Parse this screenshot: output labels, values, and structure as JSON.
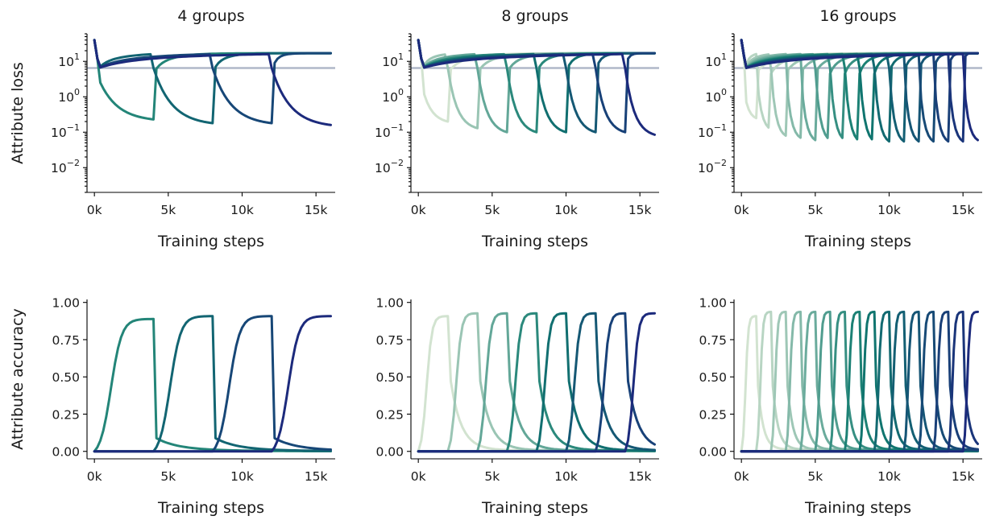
{
  "figure": {
    "row_ylabels": [
      "Attribute loss",
      "Attribute accuracy"
    ],
    "xlabel": "Training steps",
    "x_ticks": [
      0,
      5000,
      10000,
      15000
    ],
    "x_tick_labels": [
      "0k",
      "5k",
      "10k",
      "15k"
    ],
    "loss_tick_values": [
      10,
      1,
      0.1,
      0.01
    ],
    "loss_tick_labels": [
      {
        "base": "10",
        "exp": "1"
      },
      {
        "base": "10",
        "exp": "0"
      },
      {
        "base": "10",
        "exp": "−1"
      },
      {
        "base": "10",
        "exp": "−2"
      }
    ],
    "acc_tick_values": [
      0,
      0.25,
      0.5,
      0.75,
      1.0
    ],
    "acc_tick_labels": [
      "0.00",
      "0.25",
      "0.50",
      "0.75",
      "1.00"
    ],
    "reference_line_color": "#b0b8c8",
    "palette_light": "#d2e3d0",
    "palette_mid": "#0f7a6e",
    "palette_dark": "#1c2a7c"
  },
  "chart_data": [
    {
      "type": "line",
      "title": "4 groups",
      "groups": 4,
      "metric": "loss",
      "xlabel": "Training steps",
      "ylabel": "Attribute loss",
      "xlim": [
        -500,
        16300
      ],
      "ylim": [
        0.002,
        60
      ],
      "yscale": "log",
      "reference_line": 6.5,
      "minimum_losses": [
        0.23,
        0.18,
        0.18,
        0.16
      ],
      "initial_loss": 40,
      "plateau_loss": [
        6.5,
        17
      ],
      "final_accuracy": 0.95
    },
    {
      "type": "line",
      "title": "8 groups",
      "groups": 8,
      "metric": "loss",
      "xlabel": "Training steps",
      "ylabel": "",
      "xlim": [
        -500,
        16300
      ],
      "ylim": [
        0.002,
        60
      ],
      "yscale": "log",
      "reference_line": 6.5,
      "minimum_losses": [
        0.2,
        0.13,
        0.1,
        0.1,
        0.1,
        0.1,
        0.1,
        0.085
      ],
      "initial_loss": 40,
      "plateau_loss": [
        6.5,
        17
      ],
      "final_accuracy": 0.97
    },
    {
      "type": "line",
      "title": "16 groups",
      "groups": 16,
      "metric": "loss",
      "xlabel": "Training steps",
      "ylabel": "",
      "xlim": [
        -500,
        16300
      ],
      "ylim": [
        0.002,
        60
      ],
      "yscale": "log",
      "reference_line": 6.5,
      "minimum_losses": [
        0.25,
        0.12,
        0.08,
        0.07,
        0.06,
        0.06,
        0.06,
        0.055,
        0.055,
        0.055,
        0.055,
        0.055,
        0.055,
        0.055,
        0.055,
        0.06
      ],
      "initial_loss": 40,
      "plateau_loss": [
        6.5,
        17
      ],
      "final_accuracy": 0.98
    },
    {
      "type": "line",
      "title": "",
      "groups": 4,
      "metric": "accuracy",
      "xlabel": "Training steps",
      "ylabel": "Attribute accuracy",
      "xlim": [
        -500,
        16300
      ],
      "ylim": [
        -0.05,
        1.02
      ],
      "yscale": "linear",
      "reference_line": null,
      "peak_accuracy": [
        0.93,
        0.95,
        0.95,
        0.95
      ],
      "final_accuracy": 0.95
    },
    {
      "type": "line",
      "title": "",
      "groups": 8,
      "metric": "accuracy",
      "xlabel": "Training steps",
      "ylabel": "",
      "xlim": [
        -500,
        16300
      ],
      "ylim": [
        -0.05,
        1.02
      ],
      "yscale": "linear",
      "reference_line": null,
      "peak_accuracy": [
        0.95,
        0.97,
        0.97,
        0.97,
        0.97,
        0.97,
        0.97,
        0.97
      ],
      "final_accuracy": 0.97
    },
    {
      "type": "line",
      "title": "",
      "groups": 16,
      "metric": "accuracy",
      "xlabel": "Training steps",
      "ylabel": "",
      "xlim": [
        -500,
        16300
      ],
      "ylim": [
        -0.05,
        1.02
      ],
      "yscale": "linear",
      "reference_line": null,
      "peak_accuracy": [
        0.95,
        0.98,
        0.98,
        0.98,
        0.98,
        0.98,
        0.98,
        0.98,
        0.98,
        0.98,
        0.98,
        0.98,
        0.98,
        0.98,
        0.98,
        0.98
      ],
      "final_accuracy": 0.98
    }
  ]
}
